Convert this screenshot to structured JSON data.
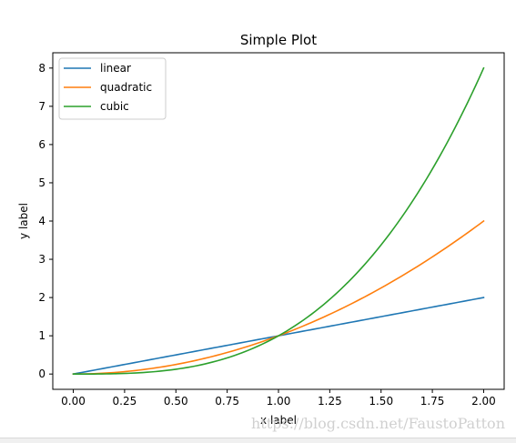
{
  "chart_data": {
    "type": "line",
    "title": "Simple Plot",
    "xlabel": "x label",
    "ylabel": "y label",
    "xlim": [
      -0.1,
      2.1
    ],
    "ylim": [
      -0.4,
      8.4
    ],
    "xticks": [
      "0.00",
      "0.25",
      "0.50",
      "0.75",
      "1.00",
      "1.25",
      "1.50",
      "1.75",
      "2.00"
    ],
    "yticks": [
      "0",
      "1",
      "2",
      "3",
      "4",
      "5",
      "6",
      "7",
      "8"
    ],
    "grid": false,
    "legend_position": "upper-left",
    "series": [
      {
        "name": "linear",
        "color": "#1f77b4",
        "exponent": 1,
        "x_range": [
          0,
          2
        ]
      },
      {
        "name": "quadratic",
        "color": "#ff7f0e",
        "exponent": 2,
        "x_range": [
          0,
          2
        ]
      },
      {
        "name": "cubic",
        "color": "#2ca02c",
        "exponent": 3,
        "x_range": [
          0,
          2
        ]
      }
    ]
  },
  "watermark": "https://blog.csdn.net/FaustoPatton"
}
